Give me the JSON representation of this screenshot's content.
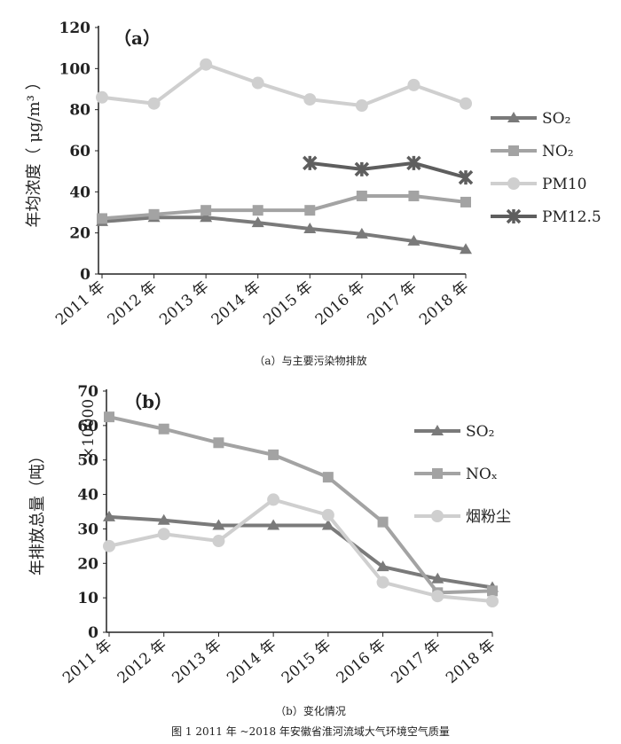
{
  "figure": {
    "caption_a": "（a）与主要污染物排放",
    "caption_b": "（b）变化情况",
    "figure_caption": "图 1 2011 年 ~2018 年安徽省淮河流域大气环境空气质量"
  },
  "chart_data": [
    {
      "type": "line",
      "panel_label": "（a）",
      "ylabel": "年均浓度（ μg/m³ ）",
      "ylim": [
        0,
        120
      ],
      "yticks": [
        0,
        20,
        40,
        60,
        80,
        100,
        120
      ],
      "categories": [
        "2011 年",
        "2012 年",
        "2013 年",
        "2014 年",
        "2015 年",
        "2016 年",
        "2017 年",
        "2018 年"
      ],
      "legend_position": "right",
      "series": [
        {
          "name": "SO₂",
          "color": "#7a7a7a",
          "marker": "triangle",
          "values": [
            25.5,
            27.5,
            27.5,
            25,
            22,
            19.5,
            16,
            12
          ]
        },
        {
          "name": "NO₂",
          "color": "#a3a3a3",
          "marker": "square",
          "values": [
            27,
            29,
            31,
            31,
            31,
            38,
            38,
            35
          ]
        },
        {
          "name": "PM10",
          "color": "#cfcfcf",
          "marker": "circle",
          "values": [
            86,
            83,
            102,
            93,
            85,
            82,
            92,
            83
          ]
        },
        {
          "name": "PM12.5",
          "color": "#5e5e5e",
          "marker": "x",
          "values": [
            null,
            null,
            null,
            null,
            54,
            51,
            54,
            47
          ]
        }
      ]
    },
    {
      "type": "line",
      "panel_label": "（b）",
      "ylabel": "年排放总量（吨）",
      "multiplier": "×10000",
      "ylim": [
        0,
        70
      ],
      "yticks": [
        0,
        10,
        20,
        30,
        40,
        50,
        60,
        70
      ],
      "categories": [
        "2011 年",
        "2012 年",
        "2013 年",
        "2014 年",
        "2015 年",
        "2016 年",
        "2017 年",
        "2018 年"
      ],
      "legend_position": "right",
      "series": [
        {
          "name": "SO₂",
          "color": "#7a7a7a",
          "marker": "triangle",
          "values": [
            33.5,
            32.5,
            31,
            31,
            31,
            19,
            15.5,
            13
          ]
        },
        {
          "name": "NOₓ",
          "color": "#a3a3a3",
          "marker": "square",
          "values": [
            62.5,
            59,
            55,
            51.5,
            45,
            32,
            11.5,
            12
          ]
        },
        {
          "name": "烟粉尘",
          "color": "#cfcfcf",
          "marker": "circle",
          "values": [
            25,
            28.5,
            26.5,
            38.5,
            34,
            14.5,
            10.5,
            9
          ]
        }
      ]
    }
  ]
}
